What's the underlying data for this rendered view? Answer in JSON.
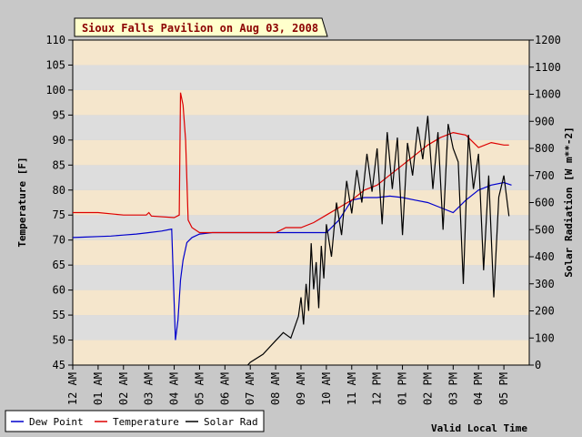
{
  "chart_data": {
    "type": "line",
    "title": "Sioux Falls Pavilion on Aug 03, 2008",
    "xlabel": "Valid Local Time",
    "ylabel_left": "Temperature [F]",
    "ylabel_right": "Solar Radiation [W m**-2]",
    "x_ticks": [
      "12 AM",
      "01 AM",
      "02 AM",
      "03 AM",
      "04 AM",
      "05 AM",
      "06 AM",
      "07 AM",
      "08 AM",
      "09 AM",
      "10 AM",
      "11 AM",
      "12 PM",
      "01 PM",
      "02 PM",
      "03 PM",
      "04 PM",
      "05 PM"
    ],
    "xlim": [
      0,
      18
    ],
    "ylim_left": [
      45,
      110
    ],
    "ylim_right": [
      0,
      1200
    ],
    "y_ticks_left": [
      "45",
      "50",
      "55",
      "60",
      "65",
      "70",
      "75",
      "80",
      "85",
      "90",
      "95",
      "100",
      "105",
      "110"
    ],
    "y_ticks_right": [
      "0",
      "100",
      "200",
      "300",
      "400",
      "500",
      "600",
      "700",
      "800",
      "900",
      "1000",
      "1100",
      "1200"
    ],
    "legend": {
      "placement": "bottom-left"
    },
    "grid": "alternating horizontal bands",
    "series": [
      {
        "name": "Dew Point",
        "axis": "left",
        "color": "#0000cc",
        "x": [
          0,
          0.5,
          1,
          1.5,
          2,
          2.5,
          3,
          3.5,
          3.9,
          4.05,
          4.15,
          4.25,
          4.35,
          4.5,
          4.7,
          5.0,
          5.5,
          6,
          7,
          8,
          9,
          10,
          10.5,
          11,
          11.5,
          12,
          12.5,
          13,
          13.5,
          14,
          14.5,
          15,
          15.5,
          16,
          16.5,
          17,
          17.3
        ],
        "y": [
          70.5,
          70.6,
          70.7,
          70.8,
          71,
          71.2,
          71.5,
          71.8,
          72.2,
          50,
          54,
          62,
          66,
          69.5,
          70.5,
          71.2,
          71.5,
          71.5,
          71.5,
          71.5,
          71.5,
          71.5,
          74,
          78,
          78.5,
          78.5,
          78.8,
          78.5,
          78,
          77.5,
          76.5,
          75.5,
          78,
          80,
          81,
          81.5,
          81
        ]
      },
      {
        "name": "Temperature",
        "axis": "left",
        "color": "#dd0000",
        "x": [
          0,
          1,
          2,
          2.9,
          3,
          3.1,
          4,
          4.2,
          4.25,
          4.35,
          4.45,
          4.55,
          4.7,
          5.0,
          6,
          7,
          8,
          8.4,
          9,
          9.5,
          10,
          10.5,
          11,
          11.5,
          12,
          12.5,
          13,
          13.5,
          14,
          14.5,
          15,
          15.5,
          16,
          16.5,
          17,
          17.2
        ],
        "y": [
          75.5,
          75.5,
          75,
          75,
          75.5,
          74.8,
          74.5,
          75,
          99.5,
          97,
          90,
          74,
          72.5,
          71.5,
          71.5,
          71.5,
          71.5,
          72.5,
          72.5,
          73.5,
          75,
          76.5,
          78,
          80,
          81,
          83,
          85,
          87,
          89,
          90.5,
          91.5,
          91,
          88.5,
          89.5,
          89,
          89
        ]
      },
      {
        "name": "Solar Rad",
        "axis": "right",
        "color": "#000000",
        "x": [
          6.9,
          7,
          7.5,
          8,
          8.3,
          8.6,
          8.9,
          9,
          9.1,
          9.2,
          9.3,
          9.4,
          9.5,
          9.6,
          9.7,
          9.8,
          9.9,
          10,
          10.2,
          10.4,
          10.6,
          10.8,
          11,
          11.2,
          11.4,
          11.6,
          11.8,
          12,
          12.2,
          12.4,
          12.6,
          12.8,
          13,
          13.2,
          13.4,
          13.6,
          13.8,
          14,
          14.2,
          14.4,
          14.6,
          14.8,
          15,
          15.2,
          15.4,
          15.6,
          15.8,
          16,
          16.2,
          16.4,
          16.6,
          16.8,
          17,
          17.2
        ],
        "y": [
          0,
          10,
          40,
          90,
          120,
          100,
          180,
          250,
          150,
          300,
          200,
          450,
          280,
          380,
          210,
          440,
          320,
          520,
          400,
          600,
          480,
          680,
          560,
          720,
          600,
          780,
          640,
          800,
          520,
          860,
          650,
          840,
          480,
          820,
          700,
          880,
          760,
          920,
          650,
          860,
          500,
          890,
          800,
          750,
          300,
          850,
          650,
          780,
          350,
          700,
          250,
          620,
          700,
          550
        ]
      }
    ]
  }
}
